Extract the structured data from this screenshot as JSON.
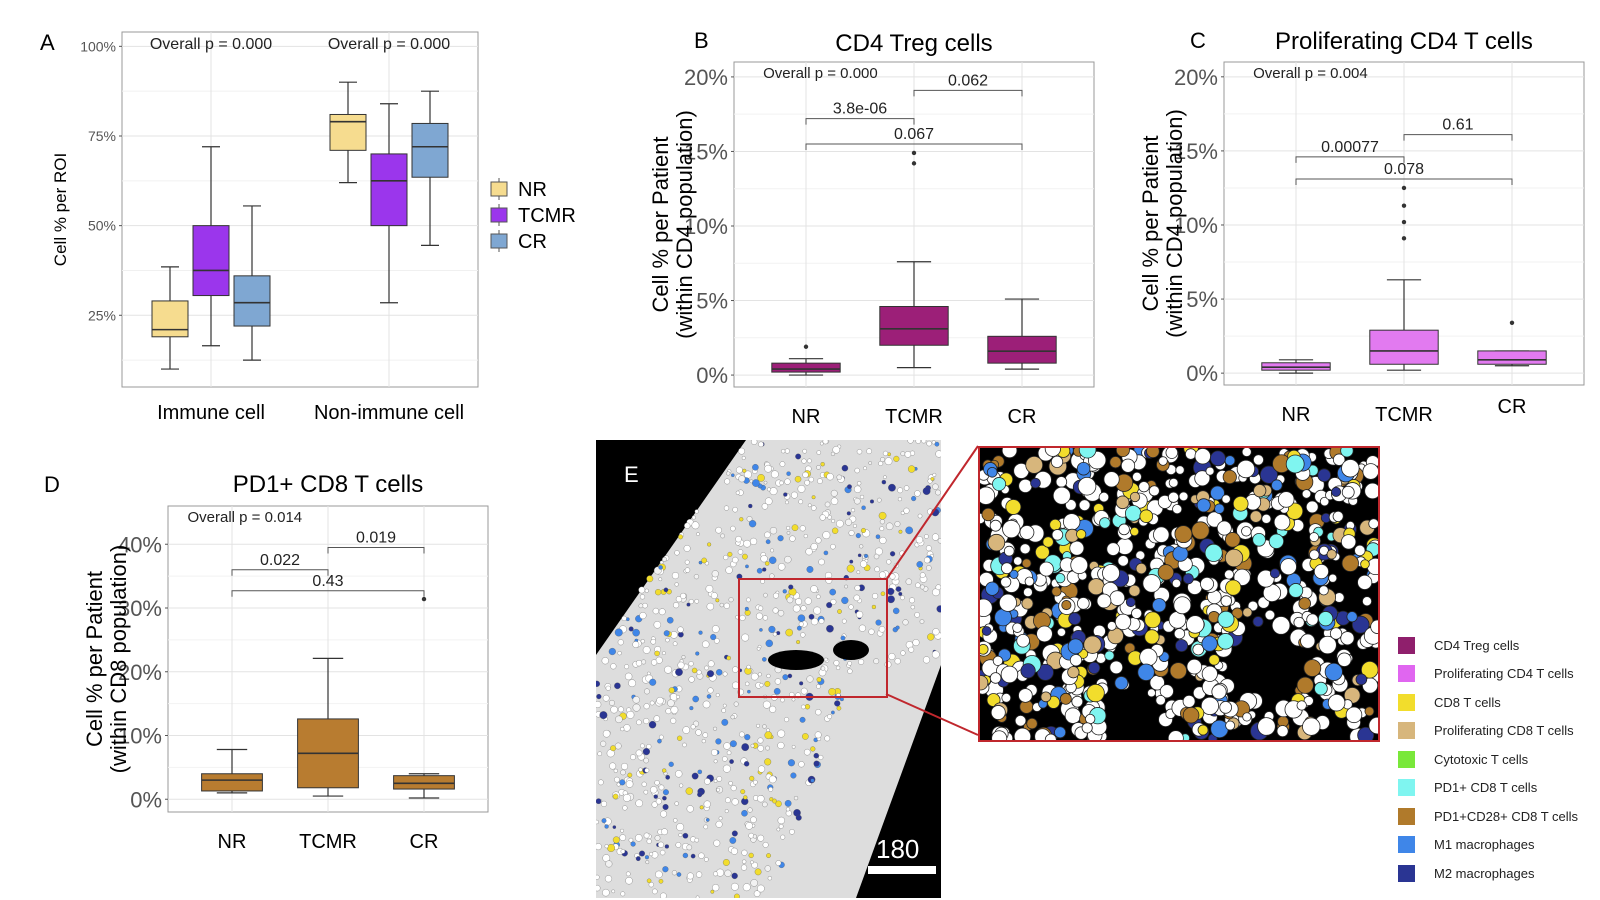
{
  "panels": {
    "A": {
      "label": "A",
      "ylabel": "Cell % per ROI",
      "yticks": [
        "25%",
        "50%",
        "75%",
        "100%"
      ],
      "annotations": [
        "Overall p = 0.000",
        "Overall p = 0.000"
      ]
    },
    "B": {
      "label": "B",
      "title": "CD4 Treg cells",
      "ylabel_line1": "Cell % per Patient",
      "ylabel_line2": "(within CD4 population)",
      "yticks": [
        "0%",
        "5%",
        "10%",
        "15%",
        "20%"
      ],
      "overall": "Overall p = 0.000",
      "brackets": [
        "3.8e-06",
        "0.062",
        "0.067"
      ]
    },
    "C": {
      "label": "C",
      "title": "Proliferating CD4 T cells",
      "ylabel_line1": "Cell % per Patient",
      "ylabel_line2": "(within CD4 population)",
      "yticks": [
        "0%",
        "5%",
        "10%",
        "15%",
        "20%"
      ],
      "overall": "Overall p = 0.004",
      "brackets": [
        "0.00077",
        "0.61",
        "0.078"
      ]
    },
    "D": {
      "label": "D",
      "title": "PD1+ CD8 T cells",
      "ylabel_line1": "Cell % per Patient",
      "ylabel_line2": "(within CD8 population)",
      "yticks": [
        "0%",
        "10%",
        "20%",
        "30%",
        "40%"
      ],
      "overall": "Overall p = 0.014",
      "brackets": [
        "0.022",
        "0.019",
        "0.43"
      ]
    },
    "E": {
      "label": "E",
      "scale_label": "180"
    }
  },
  "group_legend": {
    "items": [
      {
        "label": "NR",
        "color": "#f6dc8f"
      },
      {
        "label": "TCMR",
        "color": "#9b36ec"
      },
      {
        "label": "CR",
        "color": "#7fa7d2"
      }
    ]
  },
  "celltype_legend": {
    "items": [
      {
        "label": "CD4 Treg cells",
        "color": "#8f1f6c"
      },
      {
        "label": "Proliferating CD4 T cells",
        "color": "#e066f0"
      },
      {
        "label": "CD8 T cells",
        "color": "#f2dd2c"
      },
      {
        "label": "Proliferating CD8 T cells",
        "color": "#d7b67c"
      },
      {
        "label": "Cytotoxic T cells",
        "color": "#79e83a"
      },
      {
        "label": "PD1+ CD8 T cells",
        "color": "#7ff5f0"
      },
      {
        "label": "PD1+CD28+ CD8 T cells",
        "color": "#b07a2b"
      },
      {
        "label": "M1 macrophages",
        "color": "#3f86e8"
      },
      {
        "label": "M2 macrophages",
        "color": "#2a3593"
      }
    ]
  },
  "chart_data": [
    {
      "id": "A",
      "type": "box",
      "categories": [
        "Immune cell",
        "Non-immune cell"
      ],
      "series_names": [
        "NR",
        "TCMR",
        "CR"
      ],
      "colors": [
        "#f6dc8f",
        "#9b36ec",
        "#7fa7d2"
      ],
      "ylim": [
        0.05,
        1.04
      ],
      "boxes": [
        [
          {
            "min": 0.1,
            "q1": 0.19,
            "median": 0.21,
            "q3": 0.29,
            "max": 0.385
          },
          {
            "min": 0.165,
            "q1": 0.305,
            "median": 0.375,
            "q3": 0.5,
            "max": 0.72
          },
          {
            "min": 0.125,
            "q1": 0.22,
            "median": 0.285,
            "q3": 0.36,
            "max": 0.555
          }
        ],
        [
          {
            "min": 0.62,
            "q1": 0.71,
            "median": 0.79,
            "q3": 0.81,
            "max": 0.9
          },
          {
            "min": 0.285,
            "q1": 0.5,
            "median": 0.625,
            "q3": 0.7,
            "max": 0.84
          },
          {
            "min": 0.445,
            "q1": 0.635,
            "median": 0.72,
            "q3": 0.785,
            "max": 0.875
          }
        ]
      ]
    },
    {
      "id": "B",
      "type": "box",
      "title": "CD4 Treg cells",
      "categories": [
        "NR",
        "TCMR",
        "CR"
      ],
      "color": "#9c1f78",
      "ylim": [
        -0.008,
        0.21
      ],
      "boxes": [
        {
          "min": 0.0,
          "q1": 0.002,
          "median": 0.004,
          "q3": 0.008,
          "max": 0.011,
          "outliers": [
            0.019
          ]
        },
        {
          "min": 0.005,
          "q1": 0.02,
          "median": 0.031,
          "q3": 0.046,
          "max": 0.076,
          "outliers": [
            0.142,
            0.149
          ]
        },
        {
          "min": 0.004,
          "q1": 0.008,
          "median": 0.016,
          "q3": 0.026,
          "max": 0.051,
          "outliers": []
        }
      ]
    },
    {
      "id": "C",
      "type": "box",
      "title": "Proliferating CD4 T cells",
      "categories": [
        "NR",
        "TCMR",
        "CR"
      ],
      "color": "#e27af0",
      "ylim": [
        -0.008,
        0.21
      ],
      "boxes": [
        {
          "min": 0.0,
          "q1": 0.002,
          "median": 0.004,
          "q3": 0.007,
          "max": 0.009,
          "outliers": []
        },
        {
          "min": 0.002,
          "q1": 0.006,
          "median": 0.015,
          "q3": 0.029,
          "max": 0.063,
          "outliers": [
            0.091,
            0.102,
            0.113,
            0.125
          ]
        },
        {
          "min": 0.005,
          "q1": 0.006,
          "median": 0.009,
          "q3": 0.015,
          "max": 0.015,
          "outliers": [
            0.034
          ]
        }
      ]
    },
    {
      "id": "D",
      "type": "box",
      "title": "PD1+ CD8 T cells",
      "categories": [
        "NR",
        "TCMR",
        "CR"
      ],
      "color": "#b87c30",
      "ylim": [
        -0.02,
        0.46
      ],
      "boxes": [
        {
          "min": 0.01,
          "q1": 0.013,
          "median": 0.03,
          "q3": 0.04,
          "max": 0.078,
          "outliers": []
        },
        {
          "min": 0.005,
          "q1": 0.018,
          "median": 0.072,
          "q3": 0.126,
          "max": 0.221,
          "outliers": []
        },
        {
          "min": 0.002,
          "q1": 0.016,
          "median": 0.025,
          "q3": 0.037,
          "max": 0.04,
          "outliers": [
            0.314
          ]
        }
      ]
    }
  ]
}
